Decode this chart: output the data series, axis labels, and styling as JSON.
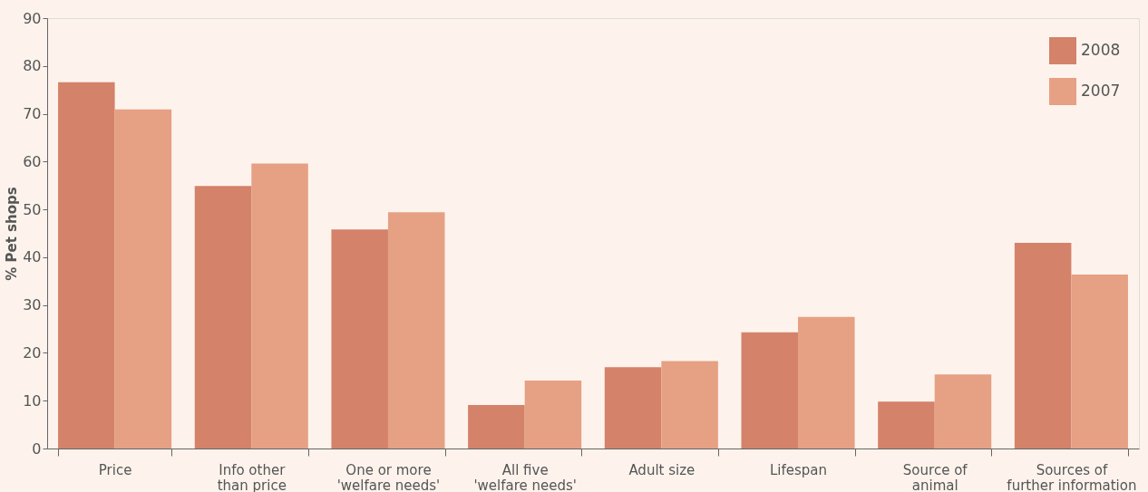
{
  "chart_data": {
    "type": "bar",
    "ylabel": "% Pet shops",
    "categories": [
      "Price",
      "Info other\nthan price",
      "One or more\n'welfare needs'",
      "All five\n'welfare needs'",
      "Adult size",
      "Lifespan",
      "Source of\nanimal",
      "Sources of\nfurther information"
    ],
    "series": [
      {
        "name": "2008",
        "color": "#d4826a",
        "values": [
          76.6,
          54.9,
          45.8,
          9.1,
          17.0,
          24.3,
          9.8,
          43.0
        ]
      },
      {
        "name": "2007",
        "color": "#e6a083",
        "values": [
          70.9,
          59.6,
          49.4,
          14.2,
          18.3,
          27.5,
          15.5,
          36.4
        ]
      }
    ],
    "ylim": [
      0,
      90
    ],
    "yticks": [
      0,
      10,
      20,
      30,
      40,
      50,
      60,
      70,
      80,
      90
    ],
    "grid": false,
    "legend": "top right"
  }
}
